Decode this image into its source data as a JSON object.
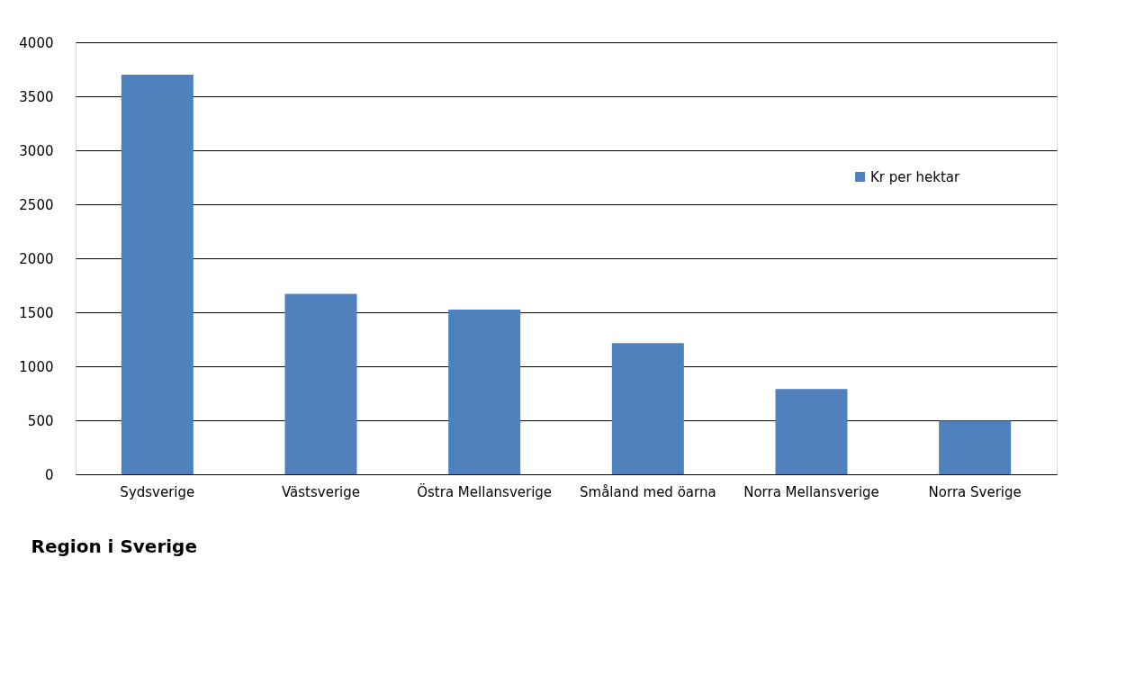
{
  "chart_data": {
    "type": "bar",
    "xlabel": "Region i Sverige",
    "categories": [
      "Sydsverige",
      "Västsverige",
      "Östra Mellansverige",
      "Småland med öarna",
      "Norra Mellansverige",
      "Norra Sverige"
    ],
    "series": [
      {
        "name": "Kr per hektar",
        "color": "#4f81bd",
        "values": [
          3700,
          1670,
          1525,
          1215,
          790,
          495
        ]
      }
    ],
    "ylim": [
      0,
      4000
    ],
    "yticks": [
      0,
      500,
      1000,
      1500,
      2000,
      2500,
      3000,
      3500,
      4000
    ],
    "grid": "y",
    "legend": "top right"
  }
}
